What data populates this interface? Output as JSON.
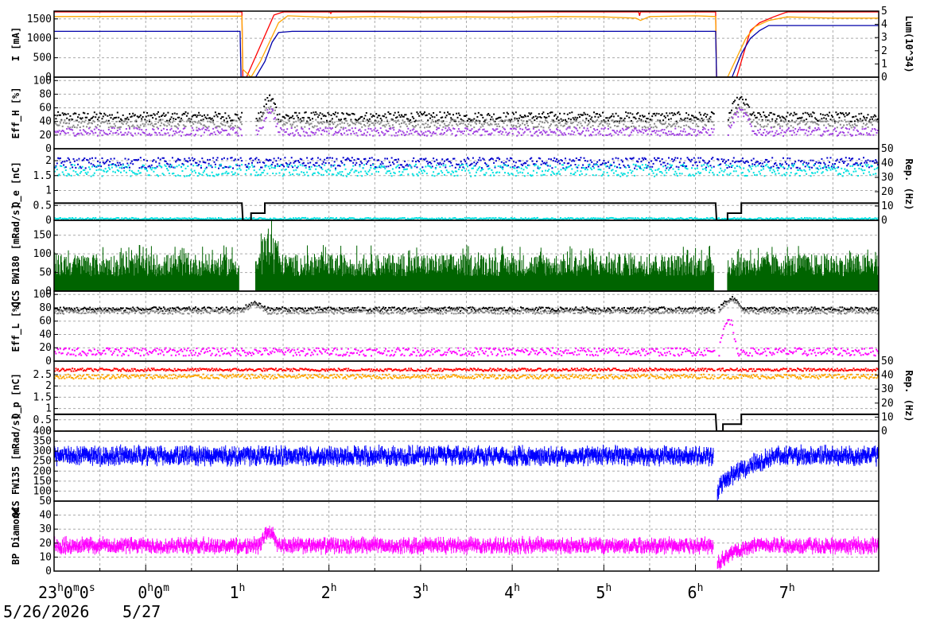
{
  "chart_data": {
    "type": "line",
    "x_axis": {
      "unit": "hours",
      "range": [
        -1,
        8
      ],
      "tick_labels": [
        {
          "x": -1,
          "main": "23",
          "sup1": "h",
          "mid": "0",
          "sup2": "m",
          "end": "0",
          "sup3": "s"
        },
        {
          "x": 0,
          "main": "0",
          "sup1": "h",
          "mid": "0",
          "sup2": "m"
        },
        {
          "x": 1,
          "main": "1",
          "sup1": "h"
        },
        {
          "x": 2,
          "main": "2",
          "sup1": "h"
        },
        {
          "x": 3,
          "main": "3",
          "sup1": "h"
        },
        {
          "x": 4,
          "main": "4",
          "sup1": "h"
        },
        {
          "x": 5,
          "main": "5",
          "sup1": "h"
        },
        {
          "x": 6,
          "main": "6",
          "sup1": "h"
        },
        {
          "x": 7,
          "main": "7",
          "sup1": "h"
        }
      ],
      "date_labels": [
        "5/26/2026",
        "5/27"
      ],
      "grid": true
    },
    "panels": [
      {
        "id": "current",
        "ylabel": "I [mA]",
        "ylim": [
          0,
          1700
        ],
        "yticks": [
          0,
          500,
          1000,
          1500
        ],
        "ylabel_right": "Lum(10^34)",
        "ylim_right": [
          0,
          5
        ],
        "yticks_right": [
          0,
          1,
          2,
          3,
          4,
          5
        ],
        "series": [
          {
            "color": "#ff0000",
            "points": [
              [
                -1,
                1680
              ],
              [
                1.05,
                1680
              ],
              [
                1.06,
                0
              ],
              [
                1.1,
                0
              ],
              [
                1.4,
                1600
              ],
              [
                1.5,
                1680
              ],
              [
                2.01,
                1680
              ],
              [
                2.02,
                1640
              ],
              [
                2.03,
                1680
              ],
              [
                5.38,
                1680
              ],
              [
                5.39,
                1580
              ],
              [
                5.4,
                1680
              ],
              [
                6.22,
                1680
              ],
              [
                6.23,
                0
              ],
              [
                6.45,
                0
              ],
              [
                6.55,
                800
              ],
              [
                6.6,
                1200
              ],
              [
                6.7,
                1400
              ],
              [
                6.85,
                1550
              ],
              [
                7.0,
                1680
              ],
              [
                8,
                1680
              ]
            ]
          },
          {
            "color": "#ffa500",
            "points": [
              [
                -1,
                1560
              ],
              [
                1.05,
                1570
              ],
              [
                1.06,
                200
              ],
              [
                1.15,
                0
              ],
              [
                1.25,
                400
              ],
              [
                1.35,
                900
              ],
              [
                1.45,
                1400
              ],
              [
                1.55,
                1580
              ],
              [
                2.0,
                1540
              ],
              [
                2.5,
                1560
              ],
              [
                3.0,
                1540
              ],
              [
                3.5,
                1550
              ],
              [
                4.0,
                1540
              ],
              [
                4.5,
                1560
              ],
              [
                5.0,
                1550
              ],
              [
                5.35,
                1520
              ],
              [
                5.4,
                1460
              ],
              [
                5.5,
                1560
              ],
              [
                6.0,
                1580
              ],
              [
                6.22,
                1560
              ],
              [
                6.23,
                0
              ],
              [
                6.35,
                0
              ],
              [
                6.45,
                500
              ],
              [
                6.55,
                1000
              ],
              [
                6.65,
                1300
              ],
              [
                6.8,
                1460
              ],
              [
                7.0,
                1550
              ],
              [
                7.5,
                1520
              ],
              [
                8,
                1520
              ]
            ]
          },
          {
            "color": "#0000aa",
            "points": [
              [
                -1,
                1180
              ],
              [
                1.03,
                1180
              ],
              [
                1.04,
                0
              ],
              [
                1.2,
                0
              ],
              [
                1.3,
                400
              ],
              [
                1.38,
                900
              ],
              [
                1.45,
                1150
              ],
              [
                1.6,
                1180
              ],
              [
                6.22,
                1180
              ],
              [
                6.23,
                0
              ],
              [
                6.4,
                0
              ],
              [
                6.5,
                600
              ],
              [
                6.6,
                1000
              ],
              [
                6.7,
                1200
              ],
              [
                6.8,
                1330
              ],
              [
                8,
                1330
              ]
            ]
          }
        ]
      },
      {
        "id": "effh",
        "ylabel": "Eff_H [%]",
        "ylim": [
          0,
          105
        ],
        "yticks": [
          0,
          20,
          40,
          60,
          80,
          100
        ],
        "series": [
          {
            "color": "#000000",
            "style": "dots",
            "base": 48,
            "noise": 7,
            "segments": [
              [
                -1,
                1.05
              ],
              [
                1.2,
                6.2
              ],
              [
                6.35,
                8
              ]
            ],
            "bump": [
              [
                1.25,
                1.5,
                75
              ],
              [
                6.35,
                6.7,
                72
              ]
            ]
          },
          {
            "color": "#888888",
            "style": "dots",
            "base": 38,
            "noise": 6,
            "segments": [
              [
                -1,
                1.05
              ],
              [
                1.2,
                6.2
              ],
              [
                6.35,
                8
              ]
            ],
            "bump": [
              [
                1.25,
                1.5,
                62
              ],
              [
                6.35,
                6.7,
                60
              ]
            ]
          },
          {
            "color": "#a040e0",
            "style": "dots",
            "base": 26,
            "noise": 6,
            "segments": [
              [
                -1,
                1.05
              ],
              [
                1.2,
                6.2
              ],
              [
                6.35,
                8
              ]
            ],
            "bump": [
              [
                1.25,
                1.5,
                58
              ],
              [
                6.35,
                6.7,
                55
              ]
            ]
          }
        ]
      },
      {
        "id": "qe",
        "ylabel": "Q_e [nC]",
        "ylim": [
          0,
          2.4
        ],
        "yticks": [
          0,
          0.5,
          1,
          1.5,
          2
        ],
        "ylabel_right": "Rep. (Hz)",
        "ylim_right": [
          0,
          50
        ],
        "yticks_right": [
          0,
          10,
          20,
          30,
          40,
          50
        ],
        "series": [
          {
            "color": "#0000cc",
            "style": "dots",
            "base": 1.95,
            "noise": 0.18,
            "segments": [
              [
                -1,
                1.05
              ],
              [
                1.08,
                6.2
              ],
              [
                6.23,
                8
              ]
            ]
          },
          {
            "color": "#00e0e0",
            "style": "dots",
            "base": 1.7,
            "noise": 0.2,
            "segments": [
              [
                -1,
                1.05
              ],
              [
                1.08,
                6.2
              ],
              [
                6.23,
                8
              ]
            ]
          },
          {
            "color": "#00e0e0",
            "style": "dots",
            "base": 0.08,
            "noise": 0.03,
            "segments": [
              [
                -1,
                8
              ]
            ]
          },
          {
            "color": "#000000",
            "axis": "right",
            "points": [
              [
                -1,
                12
              ],
              [
                1.05,
                12
              ],
              [
                1.06,
                0
              ],
              [
                1.15,
                0
              ],
              [
                1.15,
                5
              ],
              [
                1.3,
                5
              ],
              [
                1.3,
                12
              ],
              [
                6.22,
                12
              ],
              [
                6.23,
                0
              ],
              [
                6.35,
                0
              ],
              [
                6.35,
                5
              ],
              [
                6.5,
                5
              ],
              [
                6.5,
                12
              ],
              [
                8,
                12
              ]
            ]
          }
        ]
      },
      {
        "id": "qcs_bw180",
        "ylabel": "QCS BW180 [mRad/s]",
        "ylim": [
          0,
          190
        ],
        "yticks": [
          0,
          50,
          100,
          150
        ],
        "series": [
          {
            "color": "#006400",
            "style": "bars",
            "base": 40,
            "noise": 60,
            "segments": [
              [
                -1,
                1.02
              ],
              [
                1.2,
                6.2
              ],
              [
                6.35,
                8
              ]
            ],
            "bump": [
              [
                1.25,
                1.45,
                130
              ]
            ]
          }
        ]
      },
      {
        "id": "effl",
        "ylabel": "Eff_L [%]",
        "ylim": [
          0,
          105
        ],
        "yticks": [
          0,
          20,
          40,
          60,
          80,
          100
        ],
        "series": [
          {
            "color": "#000000",
            "style": "dots",
            "base": 79,
            "noise": 3,
            "segments": [
              [
                -1,
                1.05
              ],
              [
                1.05,
                6.2
              ],
              [
                6.25,
                8
              ]
            ],
            "bump": [
              [
                1.05,
                1.4,
                88
              ],
              [
                6.25,
                6.6,
                95
              ]
            ]
          },
          {
            "color": "#888888",
            "style": "dots",
            "base": 75,
            "noise": 3,
            "segments": [
              [
                -1,
                1.05
              ],
              [
                1.05,
                6.2
              ],
              [
                6.25,
                8
              ]
            ],
            "bump": [
              [
                1.05,
                1.4,
                85
              ],
              [
                6.25,
                6.6,
                92
              ]
            ]
          },
          {
            "color": "#ff00ff",
            "style": "dots",
            "base": 15,
            "noise": 6,
            "segments": [
              [
                -1,
                1.05
              ],
              [
                1.05,
                6.2
              ],
              [
                6.25,
                8
              ]
            ],
            "bump": [
              [
                6.25,
                6.5,
                65
              ]
            ]
          }
        ]
      },
      {
        "id": "qp",
        "ylabel": "Q_p [nC]",
        "ylim": [
          0,
          3.1
        ],
        "yticks": [
          0,
          0.5,
          1,
          1.5,
          2,
          2.5
        ],
        "ylabel_right": "Rep. (Hz)",
        "ylim_right": [
          0,
          50
        ],
        "yticks_right": [
          0,
          10,
          20,
          30,
          40,
          50
        ],
        "series": [
          {
            "color": "#ffa500",
            "style": "dots",
            "base": 2.45,
            "noise": 0.1,
            "segments": [
              [
                -1,
                6.2
              ],
              [
                6.23,
                8
              ]
            ]
          },
          {
            "color": "#ff0000",
            "style": "dots",
            "base": 2.75,
            "noise": 0.06,
            "segments": [
              [
                -1,
                6.2
              ],
              [
                6.23,
                8
              ]
            ]
          },
          {
            "color": "#ffa500",
            "style": "dots",
            "base": 0.02,
            "noise": 0.01,
            "segments": [
              [
                -1,
                8
              ]
            ]
          },
          {
            "color": "#000000",
            "axis": "right",
            "points": [
              [
                -1,
                12
              ],
              [
                6.22,
                12
              ],
              [
                6.23,
                0
              ],
              [
                6.3,
                0
              ],
              [
                6.3,
                5
              ],
              [
                6.5,
                5
              ],
              [
                6.5,
                12
              ],
              [
                8,
                12
              ]
            ]
          }
        ]
      },
      {
        "id": "qcs_fw135",
        "ylabel": "QCS FW135 [mRad/s]",
        "ylim": [
          50,
          400
        ],
        "yticks": [
          50,
          100,
          150,
          200,
          250,
          300,
          350,
          400
        ],
        "series": [
          {
            "color": "#0000ff",
            "style": "band",
            "base": 275,
            "noise": 25,
            "segments": [
              [
                -1,
                6.2
              ],
              [
                6.24,
                8
              ]
            ],
            "ramp": [
              [
                6.24,
                6.9,
                80,
                280
              ]
            ]
          }
        ]
      },
      {
        "id": "bp_diamond",
        "ylabel": "BP Diamond",
        "ylim": [
          0,
          50
        ],
        "yticks": [
          0,
          10,
          20,
          30,
          40
        ],
        "series": [
          {
            "color": "#ff00ff",
            "style": "band",
            "base": 18,
            "noise": 3,
            "segments": [
              [
                -1,
                6.2
              ],
              [
                6.24,
                8
              ]
            ],
            "bump": [
              [
                1.25,
                1.5,
                28
              ]
            ],
            "ramp": [
              [
                6.24,
                6.6,
                3,
                17
              ]
            ]
          }
        ]
      }
    ]
  }
}
